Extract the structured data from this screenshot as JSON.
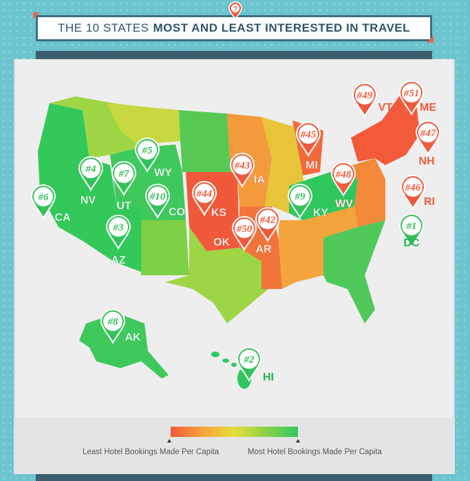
{
  "title": {
    "prefix": "THE 10 STATES",
    "emphasis": "MOST AND LEAST INTERESTED IN TRAVEL",
    "marker_icon": "question-icon"
  },
  "colors": {
    "most": "#2fc85e",
    "least": "#f05a3a",
    "pin_green": "#33c25a",
    "pin_red": "#ef5a3c"
  },
  "legend": {
    "least_label": "Least Hotel Bookings Made Per Capita",
    "most_label": "Most Hotel Bookings Made Per Capita"
  },
  "markers": [
    {
      "rank": "#1",
      "state": "DC",
      "group": "most"
    },
    {
      "rank": "#2",
      "state": "HI",
      "group": "most"
    },
    {
      "rank": "#3",
      "state": "AZ",
      "group": "most"
    },
    {
      "rank": "#4",
      "state": "NV",
      "group": "most"
    },
    {
      "rank": "#5",
      "state": "WY",
      "group": "most"
    },
    {
      "rank": "#6",
      "state": "CA",
      "group": "most"
    },
    {
      "rank": "#7",
      "state": "UT",
      "group": "most"
    },
    {
      "rank": "#8",
      "state": "AK",
      "group": "most"
    },
    {
      "rank": "#9",
      "state": "KY",
      "group": "most"
    },
    {
      "rank": "#10",
      "state": "CO",
      "group": "most"
    },
    {
      "rank": "#42",
      "state": "AR",
      "group": "least"
    },
    {
      "rank": "#43",
      "state": "IA",
      "group": "least"
    },
    {
      "rank": "#44",
      "state": "KS",
      "group": "least"
    },
    {
      "rank": "#45",
      "state": "MI",
      "group": "least"
    },
    {
      "rank": "#46",
      "state": "RI",
      "group": "least"
    },
    {
      "rank": "#47",
      "state": "NH",
      "group": "least"
    },
    {
      "rank": "#48",
      "state": "WV",
      "group": "least"
    },
    {
      "rank": "#49",
      "state": "VT",
      "group": "least"
    },
    {
      "rank": "#50",
      "state": "OK",
      "group": "least"
    },
    {
      "rank": "#51",
      "state": "ME",
      "group": "least"
    }
  ]
}
